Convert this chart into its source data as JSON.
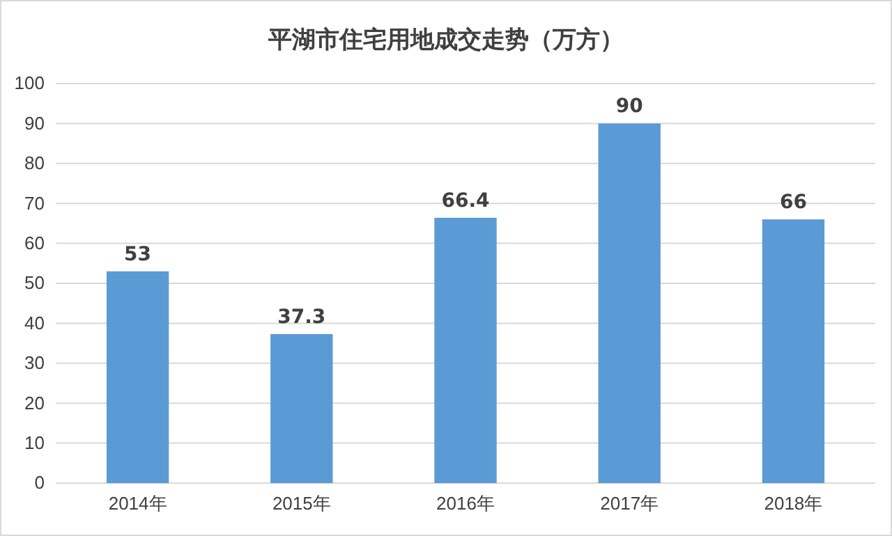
{
  "chart_data": {
    "type": "bar",
    "title": "平湖市住宅用地成交走势（万方）",
    "categories": [
      "2014年",
      "2015年",
      "2016年",
      "2017年",
      "2018年"
    ],
    "values": [
      53,
      37.3,
      66.4,
      90,
      66
    ],
    "color": "#5b9bd5",
    "ylim": [
      0,
      100
    ],
    "yticks": [
      0,
      10,
      20,
      30,
      40,
      50,
      60,
      70,
      80,
      90,
      100
    ],
    "grid": "y",
    "data_labels": true
  }
}
